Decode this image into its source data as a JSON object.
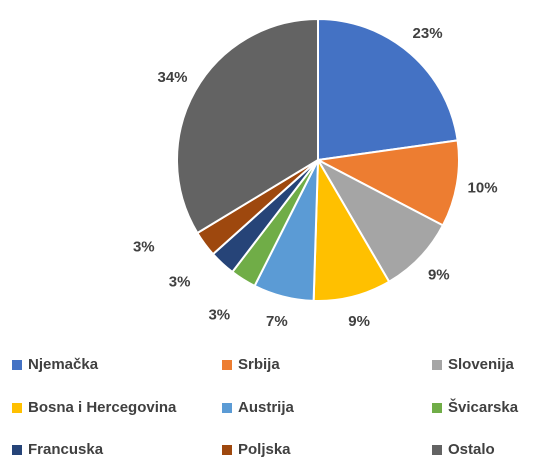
{
  "chart_data": {
    "type": "pie",
    "categories": [
      "Njemačka",
      "Srbija",
      "Slovenija",
      "Bosna i Hercegovina",
      "Austrija",
      "Švicarska",
      "Francuska",
      "Poljska",
      "Ostalo"
    ],
    "values": [
      23,
      10,
      9,
      9,
      7,
      3,
      3,
      3,
      34
    ],
    "value_labels": [
      "23%",
      "10%",
      "9%",
      "9%",
      "7%",
      "3%",
      "3%",
      "3%",
      "34%"
    ],
    "colors": [
      "#4472c4",
      "#ed7d31",
      "#a5a5a5",
      "#ffc000",
      "#5b9bd5",
      "#70ad47",
      "#264478",
      "#9e480e",
      "#636363"
    ],
    "legend": "bottom"
  }
}
